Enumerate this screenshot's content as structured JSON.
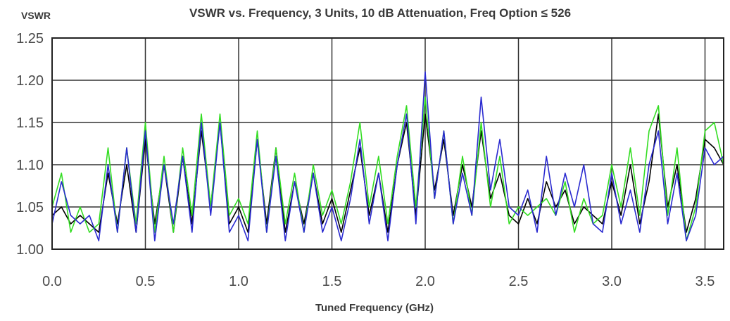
{
  "chart_data": {
    "type": "line",
    "title": "VSWR vs. Frequency, 3 Units, 10 dB Attenuation, Freq Option ≤ 526",
    "ylabel": "VSWR",
    "xlabel": "Tuned Frequency (GHz)",
    "xlim": [
      0.0,
      3.6
    ],
    "ylim": [
      1.0,
      1.25
    ],
    "x_ticks": [
      "0.0",
      "0.5",
      "1.0",
      "1.5",
      "2.0",
      "2.5",
      "3.0",
      "3.5"
    ],
    "y_ticks": [
      "1.25",
      "1.20",
      "1.15",
      "1.10",
      "1.05",
      "1.00"
    ],
    "grid": true,
    "series": [
      {
        "color": "#000000",
        "x": [
          0.0,
          0.05,
          0.1,
          0.15,
          0.2,
          0.25,
          0.3,
          0.35,
          0.4,
          0.45,
          0.5,
          0.55,
          0.6,
          0.65,
          0.7,
          0.75,
          0.8,
          0.85,
          0.9,
          0.95,
          1.0,
          1.05,
          1.1,
          1.15,
          1.2,
          1.25,
          1.3,
          1.35,
          1.4,
          1.45,
          1.5,
          1.55,
          1.6,
          1.65,
          1.7,
          1.75,
          1.8,
          1.85,
          1.9,
          1.95,
          2.0,
          2.05,
          2.1,
          2.15,
          2.2,
          2.25,
          2.3,
          2.35,
          2.4,
          2.45,
          2.5,
          2.55,
          2.6,
          2.65,
          2.7,
          2.75,
          2.8,
          2.85,
          2.9,
          2.95,
          3.0,
          3.05,
          3.1,
          3.15,
          3.2,
          3.25,
          3.3,
          3.35,
          3.4,
          3.45,
          3.5,
          3.55,
          3.6
        ],
        "values": [
          1.04,
          1.05,
          1.03,
          1.04,
          1.03,
          1.02,
          1.09,
          1.03,
          1.1,
          1.02,
          1.13,
          1.03,
          1.1,
          1.02,
          1.11,
          1.03,
          1.14,
          1.05,
          1.15,
          1.03,
          1.05,
          1.02,
          1.13,
          1.03,
          1.12,
          1.02,
          1.08,
          1.03,
          1.09,
          1.03,
          1.06,
          1.02,
          1.07,
          1.12,
          1.04,
          1.09,
          1.02,
          1.1,
          1.15,
          1.04,
          1.16,
          1.07,
          1.13,
          1.04,
          1.1,
          1.05,
          1.14,
          1.06,
          1.09,
          1.04,
          1.03,
          1.06,
          1.03,
          1.08,
          1.05,
          1.07,
          1.03,
          1.05,
          1.04,
          1.03,
          1.08,
          1.04,
          1.1,
          1.03,
          1.08,
          1.16,
          1.05,
          1.1,
          1.02,
          1.06,
          1.13,
          1.12,
          1.1
        ]
      },
      {
        "color": "#33dd22",
        "x": [
          0.0,
          0.05,
          0.1,
          0.15,
          0.2,
          0.25,
          0.3,
          0.35,
          0.4,
          0.45,
          0.5,
          0.55,
          0.6,
          0.65,
          0.7,
          0.75,
          0.8,
          0.85,
          0.9,
          0.95,
          1.0,
          1.05,
          1.1,
          1.15,
          1.2,
          1.25,
          1.3,
          1.35,
          1.4,
          1.45,
          1.5,
          1.55,
          1.6,
          1.65,
          1.7,
          1.75,
          1.8,
          1.85,
          1.9,
          1.95,
          2.0,
          2.05,
          2.1,
          2.15,
          2.2,
          2.25,
          2.3,
          2.35,
          2.4,
          2.45,
          2.5,
          2.55,
          2.6,
          2.65,
          2.7,
          2.75,
          2.8,
          2.85,
          2.9,
          2.95,
          3.0,
          3.05,
          3.1,
          3.15,
          3.2,
          3.25,
          3.3,
          3.35,
          3.4,
          3.45,
          3.5,
          3.55,
          3.6
        ],
        "values": [
          1.05,
          1.09,
          1.02,
          1.05,
          1.02,
          1.03,
          1.12,
          1.02,
          1.12,
          1.03,
          1.15,
          1.02,
          1.11,
          1.02,
          1.12,
          1.04,
          1.16,
          1.05,
          1.16,
          1.04,
          1.06,
          1.03,
          1.14,
          1.02,
          1.12,
          1.03,
          1.09,
          1.02,
          1.1,
          1.04,
          1.07,
          1.03,
          1.08,
          1.15,
          1.05,
          1.11,
          1.03,
          1.11,
          1.17,
          1.05,
          1.18,
          1.06,
          1.14,
          1.03,
          1.11,
          1.04,
          1.15,
          1.05,
          1.11,
          1.03,
          1.05,
          1.04,
          1.05,
          1.06,
          1.04,
          1.08,
          1.02,
          1.06,
          1.03,
          1.04,
          1.1,
          1.05,
          1.12,
          1.04,
          1.14,
          1.17,
          1.04,
          1.12,
          1.01,
          1.05,
          1.14,
          1.15,
          1.1
        ]
      },
      {
        "color": "#2a2ad0",
        "x": [
          0.0,
          0.05,
          0.1,
          0.15,
          0.2,
          0.25,
          0.3,
          0.35,
          0.4,
          0.45,
          0.5,
          0.55,
          0.6,
          0.65,
          0.7,
          0.75,
          0.8,
          0.85,
          0.9,
          0.95,
          1.0,
          1.05,
          1.1,
          1.15,
          1.2,
          1.25,
          1.3,
          1.35,
          1.4,
          1.45,
          1.5,
          1.55,
          1.6,
          1.65,
          1.7,
          1.75,
          1.8,
          1.85,
          1.9,
          1.95,
          2.0,
          2.05,
          2.1,
          2.15,
          2.2,
          2.25,
          2.3,
          2.35,
          2.4,
          2.45,
          2.5,
          2.55,
          2.6,
          2.65,
          2.7,
          2.75,
          2.8,
          2.85,
          2.9,
          2.95,
          3.0,
          3.05,
          3.1,
          3.15,
          3.2,
          3.25,
          3.3,
          3.35,
          3.4,
          3.45,
          3.5,
          3.55,
          3.6
        ],
        "values": [
          1.03,
          1.08,
          1.04,
          1.03,
          1.04,
          1.01,
          1.1,
          1.02,
          1.12,
          1.02,
          1.14,
          1.01,
          1.1,
          1.03,
          1.11,
          1.02,
          1.15,
          1.04,
          1.15,
          1.02,
          1.04,
          1.01,
          1.13,
          1.02,
          1.11,
          1.01,
          1.08,
          1.02,
          1.09,
          1.02,
          1.05,
          1.01,
          1.06,
          1.13,
          1.03,
          1.09,
          1.01,
          1.1,
          1.16,
          1.03,
          1.21,
          1.06,
          1.14,
          1.03,
          1.09,
          1.04,
          1.18,
          1.07,
          1.13,
          1.05,
          1.04,
          1.07,
          1.02,
          1.11,
          1.04,
          1.09,
          1.05,
          1.1,
          1.03,
          1.02,
          1.09,
          1.03,
          1.07,
          1.02,
          1.1,
          1.14,
          1.03,
          1.09,
          1.01,
          1.04,
          1.12,
          1.1,
          1.11
        ]
      }
    ]
  }
}
